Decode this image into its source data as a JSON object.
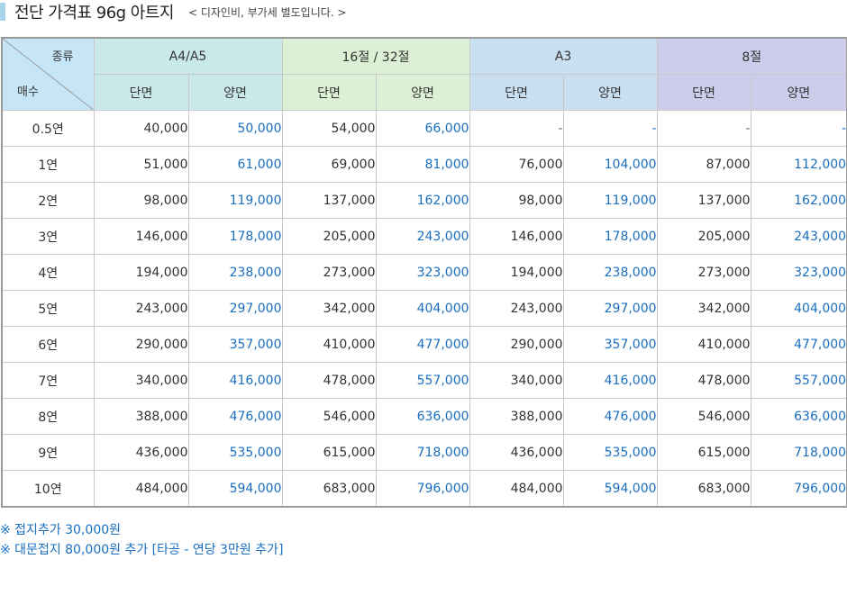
{
  "title": "전단 가격표 96g 아트지",
  "subtitle": "< 디자인비, 부가세 별도입니다. >",
  "corner": {
    "top": "종류",
    "bottom": "매수"
  },
  "groups": [
    "A4/A5",
    "16절 / 32절",
    "A3",
    "8절"
  ],
  "sub": {
    "single": "단면",
    "double": "양면"
  },
  "rows": [
    {
      "qty": "0.5연",
      "vals": [
        "40,000",
        "50,000",
        "54,000",
        "66,000",
        "-",
        "-",
        "-",
        "-"
      ]
    },
    {
      "qty": "1연",
      "vals": [
        "51,000",
        "61,000",
        "69,000",
        "81,000",
        "76,000",
        "104,000",
        "87,000",
        "112,000"
      ]
    },
    {
      "qty": "2연",
      "vals": [
        "98,000",
        "119,000",
        "137,000",
        "162,000",
        "98,000",
        "119,000",
        "137,000",
        "162,000"
      ]
    },
    {
      "qty": "3연",
      "vals": [
        "146,000",
        "178,000",
        "205,000",
        "243,000",
        "146,000",
        "178,000",
        "205,000",
        "243,000"
      ]
    },
    {
      "qty": "4연",
      "vals": [
        "194,000",
        "238,000",
        "273,000",
        "323,000",
        "194,000",
        "238,000",
        "273,000",
        "323,000"
      ]
    },
    {
      "qty": "5연",
      "vals": [
        "243,000",
        "297,000",
        "342,000",
        "404,000",
        "243,000",
        "297,000",
        "342,000",
        "404,000"
      ]
    },
    {
      "qty": "6연",
      "vals": [
        "290,000",
        "357,000",
        "410,000",
        "477,000",
        "290,000",
        "357,000",
        "410,000",
        "477,000"
      ]
    },
    {
      "qty": "7연",
      "vals": [
        "340,000",
        "416,000",
        "478,000",
        "557,000",
        "340,000",
        "416,000",
        "478,000",
        "557,000"
      ]
    },
    {
      "qty": "8연",
      "vals": [
        "388,000",
        "476,000",
        "546,000",
        "636,000",
        "388,000",
        "476,000",
        "546,000",
        "636,000"
      ]
    },
    {
      "qty": "9연",
      "vals": [
        "436,000",
        "535,000",
        "615,000",
        "718,000",
        "436,000",
        "535,000",
        "615,000",
        "718,000"
      ]
    },
    {
      "qty": "10연",
      "vals": [
        "484,000",
        "594,000",
        "683,000",
        "796,000",
        "484,000",
        "594,000",
        "683,000",
        "796,000"
      ]
    }
  ],
  "notes": [
    "※ 접지추가 30,000원",
    "※ 대문접지 80,000원 추가 [타공 - 연당 3만원 추가]"
  ],
  "colors": {
    "price_blue": "#1a6fc0",
    "corner_bg": "#c6e6f7",
    "a4_bg": "#c9e9ea",
    "16_bg": "#dcf0d5",
    "a3_bg": "#c9dff2",
    "8_bg": "#cccceb"
  }
}
